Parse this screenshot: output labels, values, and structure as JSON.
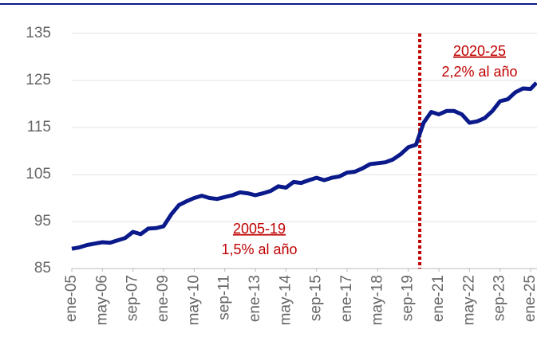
{
  "chart_data": {
    "type": "line",
    "x": [
      "2005-01",
      "2005-05",
      "2005-09",
      "2006-01",
      "2006-05",
      "2006-09",
      "2007-01",
      "2007-05",
      "2007-09",
      "2008-01",
      "2008-05",
      "2008-09",
      "2009-01",
      "2009-05",
      "2009-09",
      "2010-01",
      "2010-05",
      "2010-09",
      "2011-01",
      "2011-05",
      "2011-09",
      "2012-01",
      "2012-05",
      "2012-09",
      "2013-01",
      "2013-05",
      "2013-09",
      "2014-01",
      "2014-05",
      "2014-09",
      "2015-01",
      "2015-05",
      "2015-09",
      "2016-01",
      "2016-05",
      "2016-09",
      "2017-01",
      "2017-05",
      "2017-09",
      "2018-01",
      "2018-05",
      "2018-09",
      "2019-01",
      "2019-05",
      "2019-09",
      "2020-01",
      "2020-05",
      "2020-09",
      "2021-01",
      "2021-05",
      "2021-09",
      "2022-01",
      "2022-05",
      "2022-09",
      "2023-01",
      "2023-05",
      "2023-09",
      "2024-01",
      "2024-05",
      "2024-09",
      "2025-01",
      "2025-04"
    ],
    "values": [
      89.2,
      89.5,
      90,
      90.3,
      90.6,
      90.5,
      91,
      91.5,
      92.8,
      92.3,
      93.5,
      93.6,
      94,
      96.5,
      98.5,
      99.3,
      100,
      100.5,
      100,
      99.8,
      100.2,
      100.6,
      101.2,
      101,
      100.6,
      101,
      101.5,
      102.5,
      102.2,
      103.4,
      103.2,
      103.8,
      104.3,
      103.8,
      104.3,
      104.6,
      105.4,
      105.6,
      106.3,
      107.2,
      107.4,
      107.6,
      108.2,
      109.3,
      110.8,
      111.3,
      116,
      118.3,
      117.8,
      118.5,
      118.5,
      117.8,
      116,
      116.3,
      117,
      118.5,
      120.6,
      121,
      122.5,
      123.3,
      123.2,
      124.5
    ],
    "color": "#0b1a8a",
    "ylim": [
      85,
      135
    ],
    "yticks": [
      85,
      95,
      105,
      115,
      125,
      135
    ],
    "xticks": [
      {
        "value": "2005-01",
        "label": "ene-05"
      },
      {
        "value": "2006-05",
        "label": "may-06"
      },
      {
        "value": "2007-09",
        "label": "sep-07"
      },
      {
        "value": "2009-01",
        "label": "ene-09"
      },
      {
        "value": "2010-05",
        "label": "may-10"
      },
      {
        "value": "2011-09",
        "label": "sep-11"
      },
      {
        "value": "2013-01",
        "label": "ene-13"
      },
      {
        "value": "2014-05",
        "label": "may-14"
      },
      {
        "value": "2015-09",
        "label": "sep-15"
      },
      {
        "value": "2017-01",
        "label": "ene-17"
      },
      {
        "value": "2018-05",
        "label": "may-18"
      },
      {
        "value": "2019-09",
        "label": "sep-19"
      },
      {
        "value": "2021-01",
        "label": "ene-21"
      },
      {
        "value": "2022-05",
        "label": "may-22"
      },
      {
        "value": "2023-09",
        "label": "sep-23"
      },
      {
        "value": "2025-01",
        "label": "ene-25"
      }
    ],
    "grid": true,
    "vline": {
      "x": "2020-03",
      "color": "#c00000"
    },
    "annotations": [
      {
        "title": "2005-19",
        "text": "1,5% al año"
      },
      {
        "title": "2020-25",
        "text": "2,2% al año"
      }
    ]
  }
}
